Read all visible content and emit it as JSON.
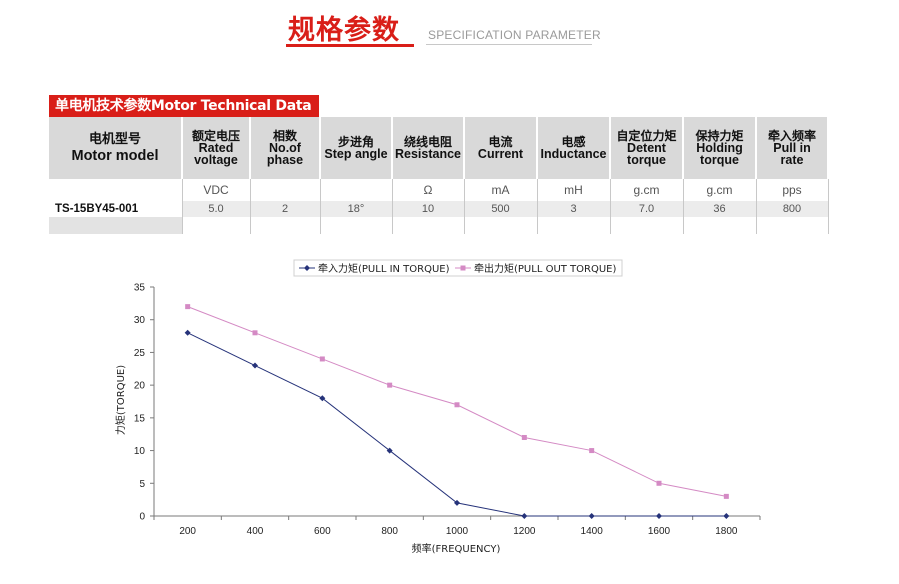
{
  "header": {
    "title_cn": "规格参数",
    "title_en": "SPECIFICATION PARAMETER"
  },
  "table": {
    "tag": "单电机技术参数Motor Technical Data",
    "model_header": {
      "cn": "电机型号",
      "en": "Motor model"
    },
    "columns": [
      {
        "cn": "额定电压",
        "en1": "Rated",
        "en2": "voltage",
        "unit": "VDC",
        "value": "5.0"
      },
      {
        "cn": "相数",
        "en1": "No.of",
        "en2": "phase",
        "unit": "",
        "value": "2"
      },
      {
        "cn": "步进角",
        "en1": "Step angle",
        "en2": "",
        "unit": "",
        "value": "18°"
      },
      {
        "cn": "绕线电阻",
        "en1": "Resistance",
        "en2": "",
        "unit": "Ω",
        "value": "10"
      },
      {
        "cn": "电流",
        "en1": "Current",
        "en2": "",
        "unit": "mA",
        "value": "500"
      },
      {
        "cn": "电感",
        "en1": "Inductance",
        "en2": "",
        "unit": "mH",
        "value": "3"
      },
      {
        "cn": "自定位力矩",
        "en1": "Detent",
        "en2": "torque",
        "unit": "g.cm",
        "value": "7.0"
      },
      {
        "cn": "保持力矩",
        "en1": "Holding",
        "en2": "torque",
        "unit": "g.cm",
        "value": "36"
      },
      {
        "cn": "牵入频率",
        "en1": "Pull in",
        "en2": "rate",
        "unit": "pps",
        "value": "800"
      }
    ],
    "model": "TS-15BY45-001"
  },
  "chart_data": {
    "type": "line",
    "title": "",
    "xlabel": "频率(FREQUENCY)",
    "ylabel": "力矩(TORQUE)",
    "x": [
      200,
      400,
      600,
      800,
      1000,
      1200,
      1400,
      1600,
      1800
    ],
    "ylim": [
      0,
      35
    ],
    "yticks": [
      0,
      5,
      10,
      15,
      20,
      25,
      30,
      35
    ],
    "grid": false,
    "legend_position": "top-center",
    "series": [
      {
        "name": "牵入力矩(PULL IN TORQUE)",
        "values": [
          28,
          23,
          18,
          10,
          2,
          0,
          0,
          0,
          0
        ],
        "color": "#26337a",
        "marker": "diamond"
      },
      {
        "name": "牵出力矩(PULL OUT TORQUE)",
        "values": [
          32,
          28,
          24,
          20,
          17,
          12,
          10,
          5,
          3
        ],
        "color": "#d48ac4",
        "marker": "square"
      }
    ]
  }
}
